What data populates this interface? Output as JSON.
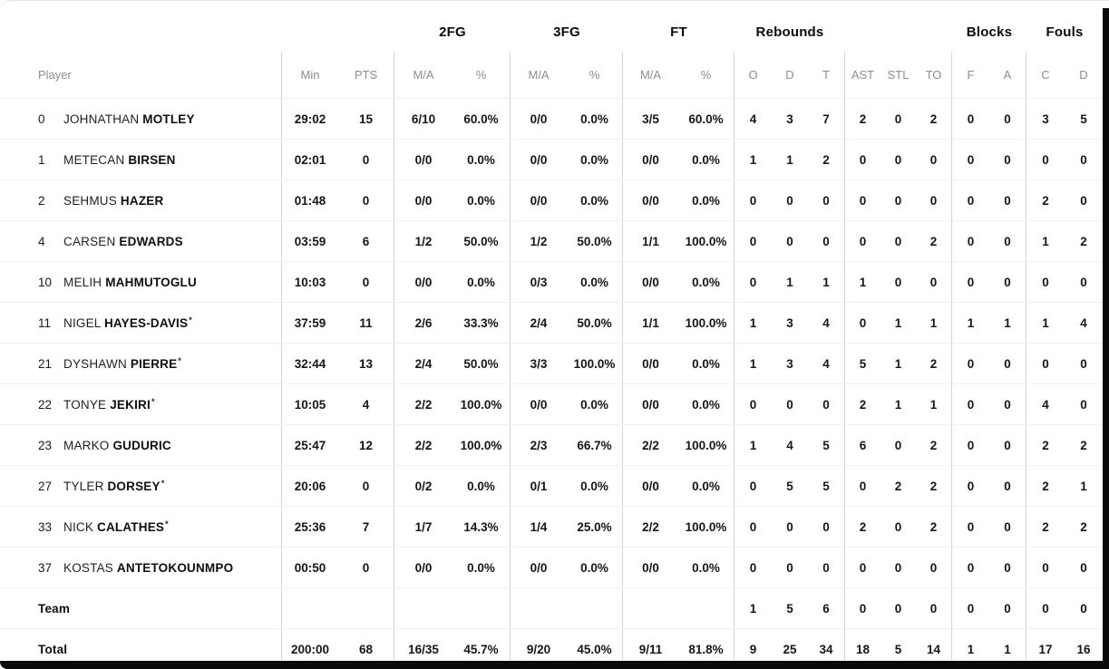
{
  "colors": {
    "scrollbar": "#0a0a0a",
    "header_text": "#8e8e8e",
    "divider": "#d3d3d3"
  },
  "table": {
    "starter_mark": "*",
    "group_headers": {
      "fg2": "2FG",
      "fg3": "3FG",
      "ft": "FT",
      "rebounds": "Rebounds",
      "blocks": "Blocks",
      "fouls": "Fouls"
    },
    "column_headers": {
      "player": "Player",
      "min": "Min",
      "pts": "PTS",
      "fg2_ma": "M/A",
      "fg2_pct": "%",
      "fg3_ma": "M/A",
      "fg3_pct": "%",
      "ft_ma": "M/A",
      "ft_pct": "%",
      "reb_o": "O",
      "reb_d": "D",
      "reb_t": "T",
      "ast": "AST",
      "stl": "STL",
      "to": "TO",
      "blk_f": "F",
      "blk_a": "A",
      "foul_c": "C",
      "foul_d": "D"
    },
    "rows": [
      {
        "num": "0",
        "first": "JOHNATHAN",
        "last": "MOTLEY",
        "starter": false,
        "min": "29:02",
        "pts": "15",
        "fg2_ma": "6/10",
        "fg2_pct": "60.0%",
        "fg3_ma": "0/0",
        "fg3_pct": "0.0%",
        "ft_ma": "3/5",
        "ft_pct": "60.0%",
        "reb_o": "4",
        "reb_d": "3",
        "reb_t": "7",
        "ast": "2",
        "stl": "0",
        "to": "2",
        "blk_f": "0",
        "blk_a": "0",
        "foul_c": "3",
        "foul_d": "5"
      },
      {
        "num": "1",
        "first": "METECAN",
        "last": "BIRSEN",
        "starter": false,
        "min": "02:01",
        "pts": "0",
        "fg2_ma": "0/0",
        "fg2_pct": "0.0%",
        "fg3_ma": "0/0",
        "fg3_pct": "0.0%",
        "ft_ma": "0/0",
        "ft_pct": "0.0%",
        "reb_o": "1",
        "reb_d": "1",
        "reb_t": "2",
        "ast": "0",
        "stl": "0",
        "to": "0",
        "blk_f": "0",
        "blk_a": "0",
        "foul_c": "0",
        "foul_d": "0"
      },
      {
        "num": "2",
        "first": "SEHMUS",
        "last": "HAZER",
        "starter": false,
        "min": "01:48",
        "pts": "0",
        "fg2_ma": "0/0",
        "fg2_pct": "0.0%",
        "fg3_ma": "0/0",
        "fg3_pct": "0.0%",
        "ft_ma": "0/0",
        "ft_pct": "0.0%",
        "reb_o": "0",
        "reb_d": "0",
        "reb_t": "0",
        "ast": "0",
        "stl": "0",
        "to": "0",
        "blk_f": "0",
        "blk_a": "0",
        "foul_c": "2",
        "foul_d": "0"
      },
      {
        "num": "4",
        "first": "CARSEN",
        "last": "EDWARDS",
        "starter": false,
        "min": "03:59",
        "pts": "6",
        "fg2_ma": "1/2",
        "fg2_pct": "50.0%",
        "fg3_ma": "1/2",
        "fg3_pct": "50.0%",
        "ft_ma": "1/1",
        "ft_pct": "100.0%",
        "reb_o": "0",
        "reb_d": "0",
        "reb_t": "0",
        "ast": "0",
        "stl": "0",
        "to": "2",
        "blk_f": "0",
        "blk_a": "0",
        "foul_c": "1",
        "foul_d": "2"
      },
      {
        "num": "10",
        "first": "MELIH",
        "last": "MAHMUTOGLU",
        "starter": false,
        "min": "10:03",
        "pts": "0",
        "fg2_ma": "0/0",
        "fg2_pct": "0.0%",
        "fg3_ma": "0/3",
        "fg3_pct": "0.0%",
        "ft_ma": "0/0",
        "ft_pct": "0.0%",
        "reb_o": "0",
        "reb_d": "1",
        "reb_t": "1",
        "ast": "1",
        "stl": "0",
        "to": "0",
        "blk_f": "0",
        "blk_a": "0",
        "foul_c": "0",
        "foul_d": "0"
      },
      {
        "num": "11",
        "first": "NIGEL",
        "last": "HAYES-DAVIS",
        "starter": true,
        "min": "37:59",
        "pts": "11",
        "fg2_ma": "2/6",
        "fg2_pct": "33.3%",
        "fg3_ma": "2/4",
        "fg3_pct": "50.0%",
        "ft_ma": "1/1",
        "ft_pct": "100.0%",
        "reb_o": "1",
        "reb_d": "3",
        "reb_t": "4",
        "ast": "0",
        "stl": "1",
        "to": "1",
        "blk_f": "1",
        "blk_a": "1",
        "foul_c": "1",
        "foul_d": "4"
      },
      {
        "num": "21",
        "first": "DYSHAWN",
        "last": "PIERRE",
        "starter": true,
        "min": "32:44",
        "pts": "13",
        "fg2_ma": "2/4",
        "fg2_pct": "50.0%",
        "fg3_ma": "3/3",
        "fg3_pct": "100.0%",
        "ft_ma": "0/0",
        "ft_pct": "0.0%",
        "reb_o": "1",
        "reb_d": "3",
        "reb_t": "4",
        "ast": "5",
        "stl": "1",
        "to": "2",
        "blk_f": "0",
        "blk_a": "0",
        "foul_c": "0",
        "foul_d": "0"
      },
      {
        "num": "22",
        "first": "TONYE",
        "last": "JEKIRI",
        "starter": true,
        "min": "10:05",
        "pts": "4",
        "fg2_ma": "2/2",
        "fg2_pct": "100.0%",
        "fg3_ma": "0/0",
        "fg3_pct": "0.0%",
        "ft_ma": "0/0",
        "ft_pct": "0.0%",
        "reb_o": "0",
        "reb_d": "0",
        "reb_t": "0",
        "ast": "2",
        "stl": "1",
        "to": "1",
        "blk_f": "0",
        "blk_a": "0",
        "foul_c": "4",
        "foul_d": "0"
      },
      {
        "num": "23",
        "first": "MARKO",
        "last": "GUDURIC",
        "starter": false,
        "min": "25:47",
        "pts": "12",
        "fg2_ma": "2/2",
        "fg2_pct": "100.0%",
        "fg3_ma": "2/3",
        "fg3_pct": "66.7%",
        "ft_ma": "2/2",
        "ft_pct": "100.0%",
        "reb_o": "1",
        "reb_d": "4",
        "reb_t": "5",
        "ast": "6",
        "stl": "0",
        "to": "2",
        "blk_f": "0",
        "blk_a": "0",
        "foul_c": "2",
        "foul_d": "2"
      },
      {
        "num": "27",
        "first": "TYLER",
        "last": "DORSEY",
        "starter": true,
        "min": "20:06",
        "pts": "0",
        "fg2_ma": "0/2",
        "fg2_pct": "0.0%",
        "fg3_ma": "0/1",
        "fg3_pct": "0.0%",
        "ft_ma": "0/0",
        "ft_pct": "0.0%",
        "reb_o": "0",
        "reb_d": "5",
        "reb_t": "5",
        "ast": "0",
        "stl": "2",
        "to": "2",
        "blk_f": "0",
        "blk_a": "0",
        "foul_c": "2",
        "foul_d": "1"
      },
      {
        "num": "33",
        "first": "NICK",
        "last": "CALATHES",
        "starter": true,
        "min": "25:36",
        "pts": "7",
        "fg2_ma": "1/7",
        "fg2_pct": "14.3%",
        "fg3_ma": "1/4",
        "fg3_pct": "25.0%",
        "ft_ma": "2/2",
        "ft_pct": "100.0%",
        "reb_o": "0",
        "reb_d": "0",
        "reb_t": "0",
        "ast": "2",
        "stl": "0",
        "to": "2",
        "blk_f": "0",
        "blk_a": "0",
        "foul_c": "2",
        "foul_d": "2"
      },
      {
        "num": "37",
        "first": "KOSTAS",
        "last": "ANTETOKOUNMPO",
        "starter": false,
        "min": "00:50",
        "pts": "0",
        "fg2_ma": "0/0",
        "fg2_pct": "0.0%",
        "fg3_ma": "0/0",
        "fg3_pct": "0.0%",
        "ft_ma": "0/0",
        "ft_pct": "0.0%",
        "reb_o": "0",
        "reb_d": "0",
        "reb_t": "0",
        "ast": "0",
        "stl": "0",
        "to": "0",
        "blk_f": "0",
        "blk_a": "0",
        "foul_c": "0",
        "foul_d": "0"
      },
      {
        "label": "Team",
        "min": "",
        "pts": "",
        "fg2_ma": "",
        "fg2_pct": "",
        "fg3_ma": "",
        "fg3_pct": "",
        "ft_ma": "",
        "ft_pct": "",
        "reb_o": "1",
        "reb_d": "5",
        "reb_t": "6",
        "ast": "0",
        "stl": "0",
        "to": "0",
        "blk_f": "0",
        "blk_a": "0",
        "foul_c": "0",
        "foul_d": "0"
      },
      {
        "label": "Total",
        "min": "200:00",
        "pts": "68",
        "fg2_ma": "16/35",
        "fg2_pct": "45.7%",
        "fg3_ma": "9/20",
        "fg3_pct": "45.0%",
        "ft_ma": "9/11",
        "ft_pct": "81.8%",
        "reb_o": "9",
        "reb_d": "25",
        "reb_t": "34",
        "ast": "18",
        "stl": "5",
        "to": "14",
        "blk_f": "1",
        "blk_a": "1",
        "foul_c": "17",
        "foul_d": "16"
      }
    ]
  }
}
